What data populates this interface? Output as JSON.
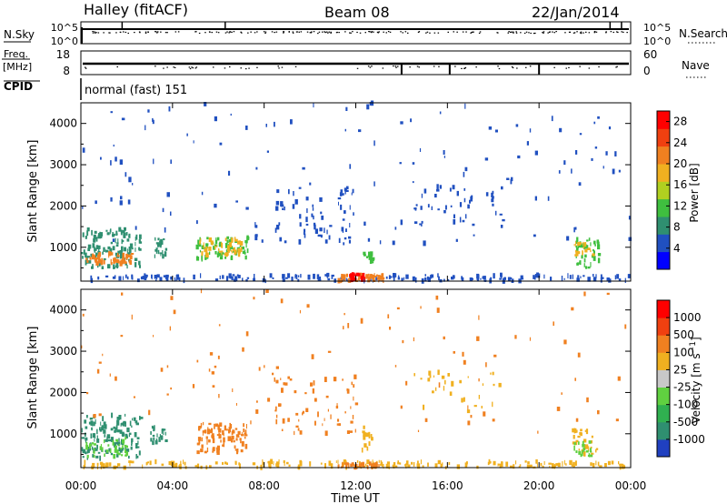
{
  "header": {
    "station": "Halley (fitACF)",
    "beam": "Beam 08",
    "date": "22/Jan/2014"
  },
  "param_strip": {
    "nsky_label": "N.Sky",
    "nsky_ticks": [
      "10^5",
      "10^0"
    ],
    "nsearch_label": "N.Search",
    "nsearch_ticks": [
      "10^5",
      "10^0"
    ],
    "freq_label": "Freq.",
    "freq_unit": "[MHz]",
    "freq_ticks": [
      "18",
      "8"
    ],
    "nave_label": "Nave",
    "nave_ticks": [
      "60",
      "0"
    ],
    "cpid_label": "CPID",
    "cpid_value": "normal (fast) 151"
  },
  "chart_data": [
    {
      "type": "heatmap",
      "name": "power-panel",
      "title": "",
      "xlabel": "Time UT",
      "ylabel": "Slant Range [km]",
      "x_ticks": [
        "00:00",
        "04:00",
        "08:00",
        "12:00",
        "16:00",
        "20:00",
        "00:00"
      ],
      "xlim_hours": [
        0,
        24
      ],
      "y_ticks": [
        1000,
        2000,
        3000,
        4000
      ],
      "ylim": [
        180,
        4500
      ],
      "colorbar": {
        "label": "Power [dB]",
        "ticks": [
          "4",
          "8",
          "12",
          "16",
          "20",
          "24",
          "28"
        ],
        "range": [
          0,
          30
        ],
        "colors": [
          "#0000ff",
          "#2050c0",
          "#2f8f70",
          "#3fbf3f",
          "#b0d020",
          "#f0b020",
          "#f08020",
          "#f04010",
          "#ff0000"
        ]
      },
      "regions": [
        {
          "t0": 0.0,
          "t1": 2.6,
          "r0": 500,
          "r1": 1450,
          "color": "#2f8f70",
          "n": 130
        },
        {
          "t0": 0.2,
          "t1": 2.2,
          "r0": 600,
          "r1": 850,
          "color": "#f08020",
          "n": 50
        },
        {
          "t0": 3.2,
          "t1": 3.7,
          "r0": 750,
          "r1": 1250,
          "color": "#2f8f70",
          "n": 25
        },
        {
          "t0": 5.0,
          "t1": 7.3,
          "r0": 700,
          "r1": 1250,
          "color": "#3fbf3f",
          "n": 75
        },
        {
          "t0": 5.1,
          "t1": 7.0,
          "r0": 800,
          "r1": 1200,
          "color": "#f0b020",
          "n": 50
        },
        {
          "t0": 0.0,
          "t1": 24,
          "r0": 180,
          "r1": 330,
          "color": "#2050c0",
          "n": 200
        },
        {
          "t0": 11.2,
          "t1": 13.2,
          "r0": 180,
          "r1": 330,
          "color": "#f08020",
          "n": 50
        },
        {
          "t0": 11.7,
          "t1": 12.4,
          "r0": 200,
          "r1": 360,
          "color": "#ff0000",
          "n": 25
        },
        {
          "t0": 12.3,
          "t1": 12.7,
          "r0": 550,
          "r1": 900,
          "color": "#3fbf3f",
          "n": 14
        },
        {
          "t0": 8.4,
          "t1": 12.0,
          "r0": 1000,
          "r1": 2500,
          "color": "#2050c0",
          "n": 60
        },
        {
          "t0": 14.5,
          "t1": 18.5,
          "r0": 1500,
          "r1": 2500,
          "color": "#2050c0",
          "n": 40
        },
        {
          "t0": 21.4,
          "t1": 22.6,
          "r0": 500,
          "r1": 1200,
          "color": "#3fbf3f",
          "n": 40
        },
        {
          "t0": 21.5,
          "t1": 22.4,
          "r0": 800,
          "r1": 1100,
          "color": "#f0b020",
          "n": 18
        },
        {
          "t0": 0.0,
          "t1": 24,
          "r0": 1000,
          "r1": 4500,
          "color": "#2050c0",
          "n": 140
        }
      ]
    },
    {
      "type": "heatmap",
      "name": "velocity-panel",
      "title": "",
      "xlabel": "Time UT",
      "ylabel": "Slant Range [km]",
      "x_ticks": [
        "00:00",
        "04:00",
        "08:00",
        "12:00",
        "16:00",
        "20:00",
        "00:00"
      ],
      "xlim_hours": [
        0,
        24
      ],
      "y_ticks": [
        1000,
        2000,
        3000,
        4000
      ],
      "ylim": [
        180,
        4500
      ],
      "colorbar": {
        "label": "Velocity [m s^-1]",
        "ticks": [
          "1000",
          "500",
          "100",
          "25",
          "-25",
          "-100",
          "-500",
          "-1000"
        ],
        "colors": [
          "#2040c0",
          "#2f8f70",
          "#30b050",
          "#60d040",
          "#c8c8c8",
          "#f0b020",
          "#f08020",
          "#f04010",
          "#ff0000"
        ]
      },
      "regions": [
        {
          "t0": 0.0,
          "t1": 2.6,
          "r0": 400,
          "r1": 1450,
          "color": "#2f8f70",
          "n": 130
        },
        {
          "t0": 0.2,
          "t1": 2.0,
          "r0": 450,
          "r1": 900,
          "color": "#60d040",
          "n": 40
        },
        {
          "t0": 3.0,
          "t1": 3.7,
          "r0": 750,
          "r1": 1200,
          "color": "#2f8f70",
          "n": 20
        },
        {
          "t0": 5.0,
          "t1": 7.3,
          "r0": 550,
          "r1": 1250,
          "color": "#f08020",
          "n": 95
        },
        {
          "t0": 0.0,
          "t1": 24,
          "r0": 180,
          "r1": 330,
          "color": "#f0b020",
          "n": 200
        },
        {
          "t0": 11.2,
          "t1": 13.0,
          "r0": 180,
          "r1": 280,
          "color": "#f08020",
          "n": 40
        },
        {
          "t0": 12.2,
          "t1": 12.7,
          "r0": 600,
          "r1": 1300,
          "color": "#f0b020",
          "n": 14
        },
        {
          "t0": 8.4,
          "t1": 12.0,
          "r0": 1000,
          "r1": 2400,
          "color": "#f08020",
          "n": 55
        },
        {
          "t0": 14.5,
          "t1": 18.5,
          "r0": 1500,
          "r1": 2500,
          "color": "#f0b020",
          "n": 30
        },
        {
          "t0": 21.4,
          "t1": 22.5,
          "r0": 500,
          "r1": 1100,
          "color": "#f0b020",
          "n": 30
        },
        {
          "t0": 21.5,
          "t1": 22.3,
          "r0": 450,
          "r1": 800,
          "color": "#60d040",
          "n": 18
        },
        {
          "t0": 0.0,
          "t1": 24,
          "r0": 1000,
          "r1": 4500,
          "color": "#f08020",
          "n": 110
        }
      ]
    }
  ]
}
